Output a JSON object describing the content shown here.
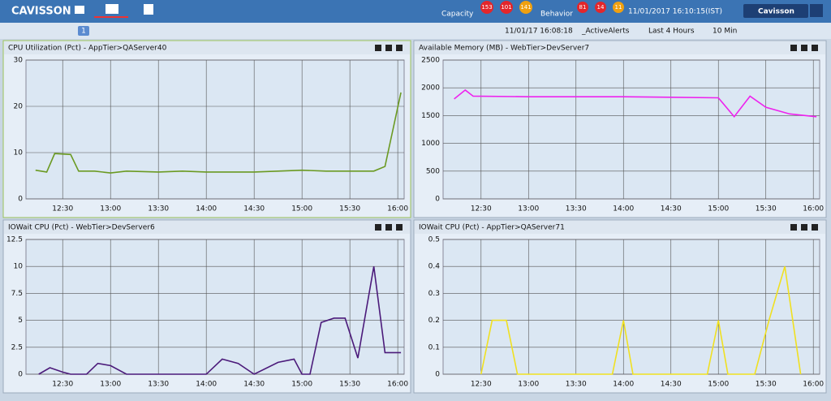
{
  "header": {
    "logo": "CAVISSON",
    "capacity_label": "Capacity",
    "capacity_counts": [
      "153",
      "101",
      "141"
    ],
    "behavior_label": "Behavior",
    "behavior_counts": [
      "81",
      "14",
      "11"
    ],
    "datetime": "11/01/2017 16:10:15(IST)",
    "user": "Cavisson"
  },
  "toolbar": {
    "page": "1",
    "time": "11/01/17 16:08:18",
    "favorite": "_ActiveAlerts",
    "range": "Last 4 Hours",
    "interval": "10 Min"
  },
  "chart_data": [
    {
      "type": "line",
      "title": "CPU Utilization (Pct) - AppTier>QAServer40",
      "xlim": [
        "12:07",
        "16:04"
      ],
      "xticks": [
        "12:30",
        "13:00",
        "13:30",
        "14:00",
        "14:30",
        "15:00",
        "15:30",
        "16:00"
      ],
      "ylim": [
        0,
        30
      ],
      "yticks": [
        0,
        10,
        20,
        30
      ],
      "x": [
        "12:13",
        "12:20",
        "12:25",
        "12:35",
        "12:40",
        "12:50",
        "13:00",
        "13:10",
        "13:30",
        "13:45",
        "14:00",
        "14:30",
        "15:00",
        "15:15",
        "15:45",
        "15:52",
        "15:57",
        "16:02"
      ],
      "series": [
        {
          "color": "#6b9a22",
          "values": [
            6.2,
            5.8,
            9.8,
            9.6,
            6,
            6,
            5.6,
            6,
            5.8,
            6,
            5.8,
            5.8,
            6.2,
            6,
            6,
            7,
            15,
            23
          ]
        }
      ]
    },
    {
      "type": "line",
      "title": "Available Memory (MB) - WebTier>DevServer7",
      "xlim": [
        "12:06",
        "16:04"
      ],
      "xticks": [
        "12:30",
        "13:00",
        "13:30",
        "14:00",
        "14:30",
        "15:00",
        "15:30",
        "16:00"
      ],
      "ylim": [
        0,
        2500
      ],
      "yticks": [
        0,
        500,
        1000,
        1500,
        2000,
        2500
      ],
      "x": [
        "12:13",
        "12:20",
        "12:25",
        "13:00",
        "14:00",
        "14:30",
        "15:00",
        "15:10",
        "15:20",
        "15:30",
        "15:45",
        "16:02"
      ],
      "series": [
        {
          "color": "#ee22ee",
          "values": [
            1800,
            1960,
            1850,
            1840,
            1840,
            1830,
            1820,
            1480,
            1850,
            1650,
            1530,
            1480
          ]
        }
      ]
    },
    {
      "type": "line",
      "title": "IOWait CPU (Pct) - WebTier>DevServer6",
      "xlim": [
        "12:07",
        "16:04"
      ],
      "xticks": [
        "12:30",
        "13:00",
        "13:30",
        "14:00",
        "14:30",
        "15:00",
        "15:30",
        "16:00"
      ],
      "ylim": [
        0,
        12.5
      ],
      "yticks": [
        0,
        2.5,
        5,
        7.5,
        10,
        12.5
      ],
      "x": [
        "12:15",
        "12:22",
        "12:30",
        "12:35",
        "12:45",
        "12:52",
        "13:00",
        "13:10",
        "14:00",
        "14:10",
        "14:20",
        "14:30",
        "14:45",
        "14:55",
        "15:00",
        "15:05",
        "15:12",
        "15:20",
        "15:27",
        "15:35",
        "15:45",
        "15:52",
        "16:02"
      ],
      "series": [
        {
          "color": "#4b1a7a",
          "values": [
            0,
            0.6,
            0.2,
            0,
            0,
            1,
            0.8,
            0,
            0,
            1.4,
            1,
            0,
            1.1,
            1.4,
            0,
            0,
            4.8,
            5.2,
            5.2,
            1.5,
            10,
            2,
            2
          ]
        }
      ]
    },
    {
      "type": "line",
      "title": "IOWait CPU (Pct) - AppTier>QAServer71",
      "xlim": [
        "12:06",
        "16:04"
      ],
      "xticks": [
        "12:30",
        "13:00",
        "13:30",
        "14:00",
        "14:30",
        "15:00",
        "15:30",
        "16:00"
      ],
      "ylim": [
        0,
        0.5
      ],
      "yticks": [
        0,
        0.1,
        0.2,
        0.3,
        0.4,
        0.5
      ],
      "x": [
        "12:30",
        "12:37",
        "12:46",
        "12:53",
        "13:53",
        "14:00",
        "14:06",
        "14:53",
        "15:00",
        "15:06",
        "15:23",
        "15:32",
        "15:42",
        "15:52"
      ],
      "series": [
        {
          "color": "#f0e020",
          "values": [
            0,
            0.2,
            0.2,
            0,
            0,
            0.2,
            0,
            0,
            0.2,
            0,
            0,
            0.2,
            0.4,
            0
          ]
        }
      ]
    }
  ]
}
